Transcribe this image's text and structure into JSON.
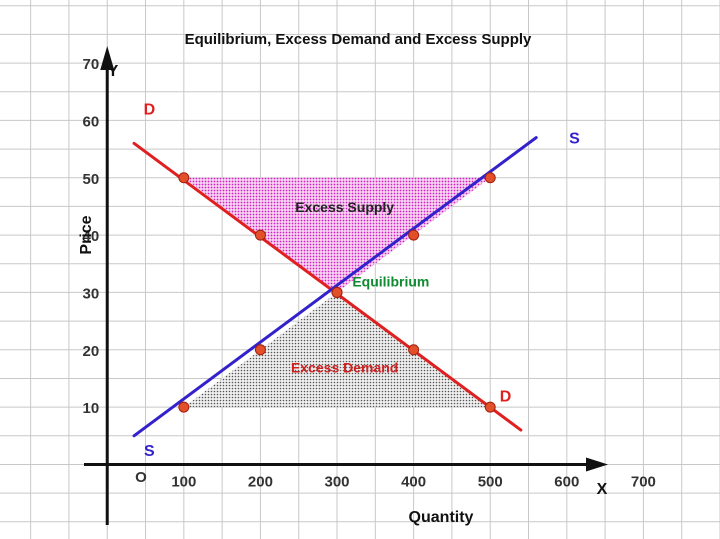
{
  "chart_data": {
    "type": "line",
    "title": "Equilibrium, Excess Demand and Excess Supply",
    "xlabel": "Quantity",
    "ylabel": "Price",
    "x_axis_letter": "X",
    "y_axis_letter": "Y",
    "origin_label": "O",
    "x_ticks": [
      100,
      200,
      300,
      400,
      500,
      600,
      700
    ],
    "y_ticks": [
      10,
      20,
      30,
      40,
      50,
      60,
      70
    ],
    "xlim": [
      -140,
      800
    ],
    "ylim": [
      -13,
      81
    ],
    "grid": true,
    "series": [
      {
        "name": "D",
        "color": "#e02020",
        "line": [
          [
            35,
            56
          ],
          [
            540,
            6
          ]
        ],
        "points": [
          [
            100,
            50
          ],
          [
            200,
            40
          ],
          [
            300,
            30
          ],
          [
            400,
            20
          ],
          [
            500,
            10
          ]
        ]
      },
      {
        "name": "S",
        "color": "#3322cc",
        "line": [
          [
            35,
            5
          ],
          [
            560,
            57
          ]
        ],
        "points": [
          [
            100,
            10
          ],
          [
            200,
            20
          ],
          [
            300,
            30
          ],
          [
            400,
            40
          ],
          [
            500,
            50
          ]
        ]
      }
    ],
    "point_color": "#e2502a",
    "regions": [
      {
        "label": "Excess Supply",
        "color": "#d020c0",
        "label_color": "#222222",
        "polygon": [
          [
            100,
            50
          ],
          [
            500,
            50
          ],
          [
            300,
            30
          ]
        ],
        "label_at": [
          310,
          44
        ]
      },
      {
        "label": "Excess Demand",
        "color": "#444444",
        "label_color": "#d02020",
        "polygon": [
          [
            100,
            10
          ],
          [
            500,
            10
          ],
          [
            300,
            30
          ]
        ],
        "label_at": [
          310,
          16
        ]
      }
    ],
    "annotations": [
      {
        "text": "Equilibrium",
        "color": "#108a30",
        "at": [
          320,
          31
        ]
      }
    ]
  }
}
